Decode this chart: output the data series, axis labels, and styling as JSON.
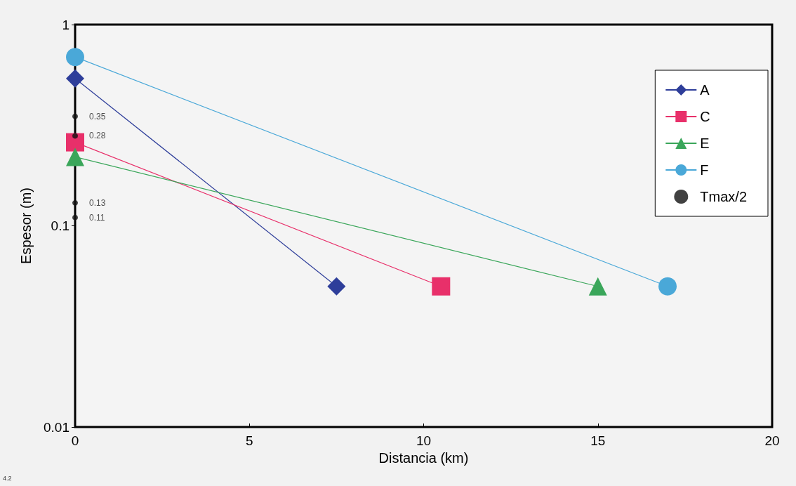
{
  "chart_data": {
    "type": "line",
    "xlabel": "Distancia (km)",
    "ylabel": "Espesor (m)",
    "log": "y",
    "xlim": [
      0,
      20
    ],
    "xticks": [
      0,
      5,
      10,
      15,
      20
    ],
    "ylim": [
      0.01,
      1
    ],
    "yticks": [
      0.01,
      0.1,
      1
    ],
    "grid": false,
    "legend": "top right",
    "annotations": [
      "4.2"
    ],
    "series": [
      {
        "name": "A",
        "color": "#2e3e9a",
        "marker": "diamond",
        "x": [
          0,
          7.5
        ],
        "values": [
          0.54,
          0.05
        ]
      },
      {
        "name": "C",
        "color": "#e8306a",
        "marker": "square",
        "x": [
          0,
          10.5
        ],
        "values": [
          0.26,
          0.05
        ]
      },
      {
        "name": "E",
        "color": "#3aa65a",
        "marker": "triangle",
        "x": [
          0,
          15
        ],
        "values": [
          0.22,
          0.05
        ]
      },
      {
        "name": "F",
        "color": "#4aa8d8",
        "marker": "circle",
        "x": [
          0,
          17
        ],
        "values": [
          0.69,
          0.05
        ]
      },
      {
        "name": "Tmax/2",
        "type": "scatter",
        "color": "#111111",
        "marker": "circle",
        "x": [
          0,
          0,
          0,
          0
        ],
        "values": [
          0.35,
          0.28,
          0.13,
          0.11
        ],
        "value_labels": [
          "0.35",
          "0.28",
          "0.13",
          "0.11"
        ]
      }
    ]
  }
}
